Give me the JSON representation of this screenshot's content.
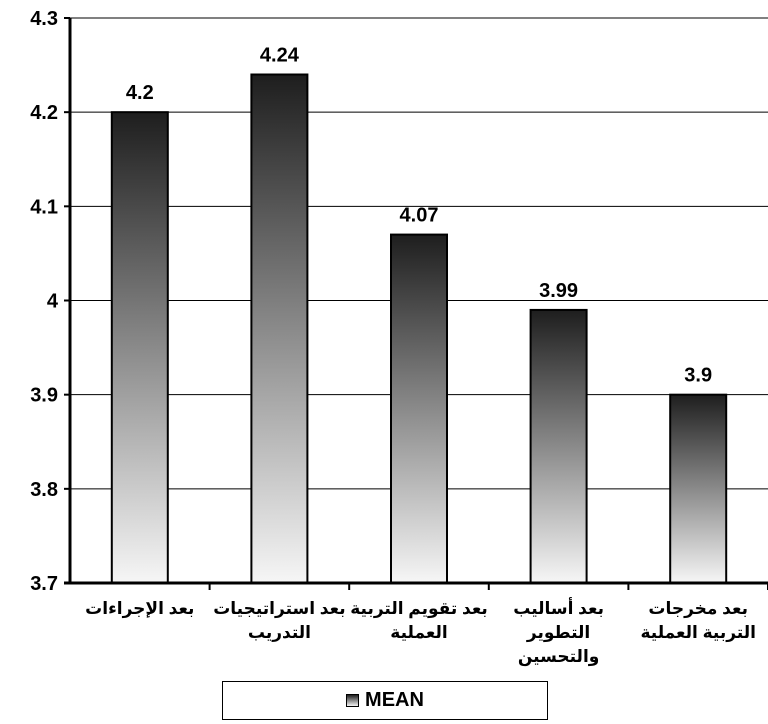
{
  "chart_data": {
    "type": "bar",
    "categories": [
      [
        "بعد الإجراءات"
      ],
      [
        "بعد استراتيجيات",
        "التدريب"
      ],
      [
        "بعد تقويم التربية",
        "العملية"
      ],
      [
        "بعد أساليب",
        "التطوير",
        "والتحسين"
      ],
      [
        "بعد مخرجات",
        "التربية العملية"
      ]
    ],
    "series": [
      {
        "name": "MEAN",
        "values": [
          4.2,
          4.24,
          4.07,
          3.99,
          3.9
        ]
      }
    ],
    "data_labels": [
      "4.2",
      "4.24",
      "4.07",
      "3.99",
      "3.9"
    ],
    "ylim": [
      3.7,
      4.3
    ],
    "yticks": [
      3.7,
      3.8,
      3.9,
      4,
      4.1,
      4.2,
      4.3
    ],
    "ytick_labels": [
      "3.7",
      "3.8",
      "3.9",
      "4",
      "4.1",
      "4.2",
      "4.3"
    ],
    "grid": true,
    "legend_position": "bottom",
    "bar_gradient": [
      "#1e1e1e",
      "#f6f6f6"
    ]
  },
  "legend": {
    "label": "MEAN"
  }
}
